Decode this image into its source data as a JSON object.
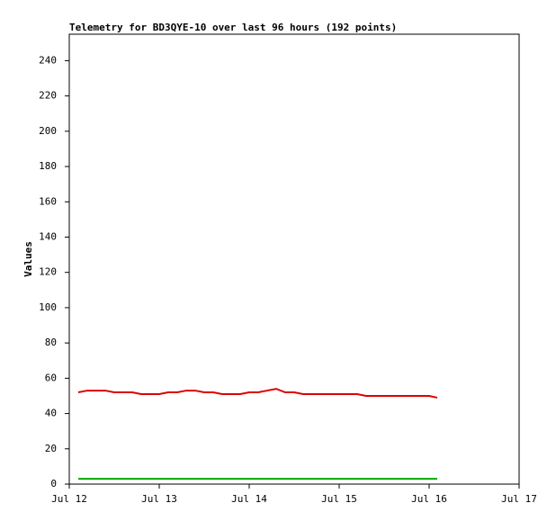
{
  "chart_data": {
    "type": "line",
    "title": "Telemetry for BD3QYE-10 over last 96 hours (192 points)",
    "y_label": "Values",
    "x": [
      12.1,
      12.2,
      12.3,
      12.4,
      12.5,
      12.6,
      12.7,
      12.8,
      12.9,
      13.0,
      13.1,
      13.2,
      13.3,
      13.4,
      13.5,
      13.6,
      13.7,
      13.8,
      13.9,
      14.0,
      14.1,
      14.2,
      14.3,
      14.4,
      14.5,
      14.6,
      14.7,
      14.8,
      14.9,
      15.0,
      15.1,
      15.2,
      15.3,
      15.4,
      15.5,
      15.6,
      15.7,
      15.8,
      15.9,
      16.0,
      16.09
    ],
    "series": [
      {
        "color": "#dd0000",
        "values": [
          52,
          53,
          53,
          53,
          52,
          52,
          52,
          51,
          51,
          51,
          52,
          52,
          53,
          53,
          52,
          52,
          51,
          51,
          51,
          52,
          52,
          53,
          54,
          52,
          52,
          51,
          51,
          51,
          51,
          51,
          51,
          51,
          50,
          50,
          50,
          50,
          50,
          50,
          50,
          50,
          49
        ]
      },
      {
        "color": "#00aa00",
        "values": [
          3,
          3,
          3,
          3,
          3,
          3,
          3,
          3,
          3,
          3,
          3,
          3,
          3,
          3,
          3,
          3,
          3,
          3,
          3,
          3,
          3,
          3,
          3,
          3,
          3,
          3,
          3,
          3,
          3,
          3,
          3,
          3,
          3,
          3,
          3,
          3,
          3,
          3,
          3,
          3,
          3
        ]
      }
    ],
    "xlim": [
      12,
      17
    ],
    "xticks": [
      {
        "value": 12,
        "label": "Jul 12"
      },
      {
        "value": 13,
        "label": "Jul 13"
      },
      {
        "value": 14,
        "label": "Jul 14"
      },
      {
        "value": 15,
        "label": "Jul 15"
      },
      {
        "value": 16,
        "label": "Jul 16"
      },
      {
        "value": 17,
        "label": "Jul 17"
      }
    ],
    "ylim": [
      0,
      255
    ],
    "yticks": [
      0,
      20,
      40,
      60,
      80,
      100,
      120,
      140,
      160,
      180,
      200,
      220,
      240
    ],
    "grid": false
  }
}
